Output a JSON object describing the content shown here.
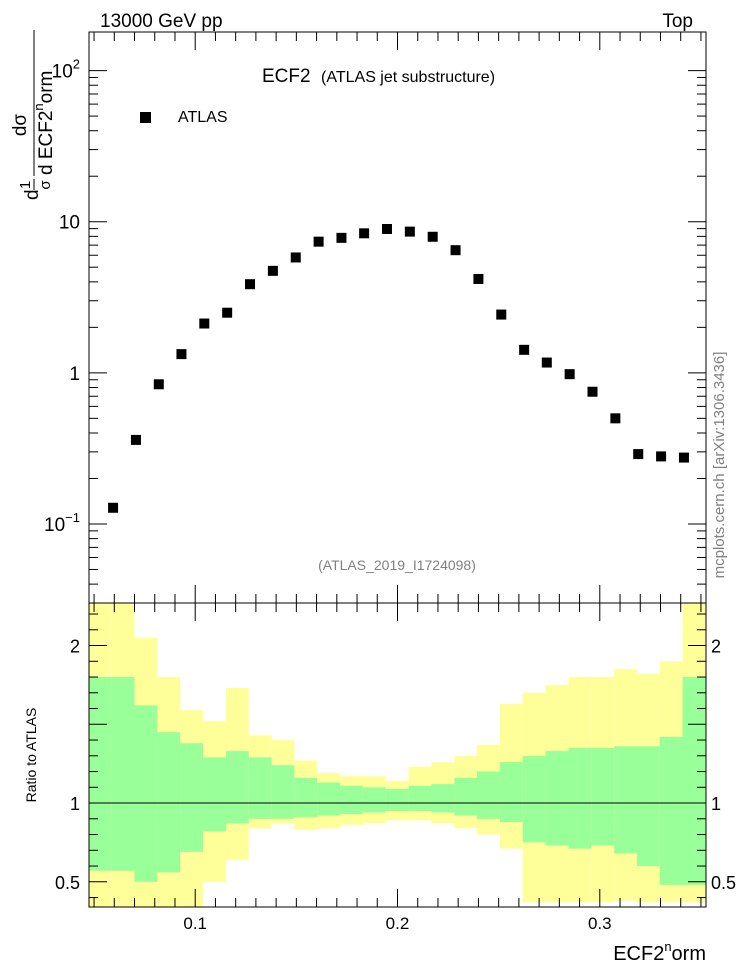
{
  "header": {
    "left": "13000 GeV pp",
    "right": "Top"
  },
  "side_text": "mcplots.cern.ch [arXiv:1306.3436]",
  "chart_data": [
    {
      "id": "main",
      "type": "scatter",
      "title": "ECF2",
      "subtitle": "(ATLAS jet substructure)",
      "analysis_tag": "(ATLAS_2019_I1724098)",
      "ylabel_parts": [
        "d",
        "1",
        "σ",
        "dσ",
        "d ECF2",
        "n",
        "orm"
      ],
      "yscale": "log",
      "ylim": [
        0.03,
        180
      ],
      "xlim": [
        0.0475,
        0.3525
      ],
      "yticks": [
        {
          "v": 0.1,
          "base": "10",
          "exp": "−1"
        },
        {
          "v": 1,
          "base": "1",
          "exp": ""
        },
        {
          "v": 10,
          "base": "10",
          "exp": ""
        },
        {
          "v": 100,
          "base": "10",
          "exp": "2"
        }
      ],
      "legend": {
        "label": "ATLAS",
        "placement": "top-left"
      },
      "series": [
        {
          "name": "ATLAS",
          "x": [
            0.0594,
            0.0707,
            0.082,
            0.0932,
            0.1045,
            0.1158,
            0.1271,
            0.1384,
            0.1497,
            0.161,
            0.1723,
            0.1835,
            0.1948,
            0.2061,
            0.2174,
            0.2287,
            0.24,
            0.2513,
            0.2626,
            0.2738,
            0.2851,
            0.2964,
            0.3077,
            0.319,
            0.3303,
            0.3416
          ],
          "values": [
            0.128,
            0.36,
            0.84,
            1.33,
            2.12,
            2.5,
            3.86,
            4.73,
            5.8,
            7.38,
            7.82,
            8.38,
            8.95,
            8.6,
            7.95,
            6.48,
            4.18,
            2.43,
            1.42,
            1.17,
            0.98,
            0.75,
            0.5,
            0.29,
            0.28,
            0.275
          ]
        }
      ]
    },
    {
      "id": "ratio",
      "type": "area",
      "ylabel": "Ratio to ATLAS",
      "xlabel_parts": [
        "ECF2",
        "n",
        "orm"
      ],
      "xlim": [
        0.0475,
        0.3525
      ],
      "ylim": [
        0.34,
        2.27
      ],
      "xticks": [
        {
          "v": 0.1,
          "label": "0.1"
        },
        {
          "v": 0.2,
          "label": "0.2"
        },
        {
          "v": 0.3,
          "label": "0.3"
        }
      ],
      "yticks": [
        {
          "v": 0.5,
          "label": "0.5"
        },
        {
          "v": 1,
          "label": "1"
        },
        {
          "v": 2,
          "label": "2"
        }
      ],
      "reference_line": 1,
      "bin_edges": [
        0.0475,
        0.0588,
        0.07,
        0.0813,
        0.0926,
        0.1039,
        0.1152,
        0.1265,
        0.1378,
        0.149,
        0.1603,
        0.1716,
        0.1829,
        0.1942,
        0.2055,
        0.2168,
        0.2281,
        0.2393,
        0.2506,
        0.2619,
        0.2732,
        0.2845,
        0.2958,
        0.3071,
        0.3184,
        0.3296,
        0.3409
      ],
      "bands": [
        {
          "name": "total uncertainty",
          "color": "#ffff99",
          "upper": [
            2.37,
            2.37,
            2.05,
            1.8,
            1.59,
            1.52,
            1.73,
            1.43,
            1.4,
            1.27,
            1.19,
            1.17,
            1.17,
            1.14,
            1.23,
            1.26,
            1.3,
            1.37,
            1.63,
            1.7,
            1.75,
            1.8,
            1.8,
            1.85,
            1.82,
            1.9,
            2.37
          ],
          "lower": [
            0.0,
            0.0,
            0.0,
            0.0,
            0.0,
            0.5,
            0.64,
            0.84,
            0.87,
            0.83,
            0.84,
            0.86,
            0.87,
            0.89,
            0.89,
            0.87,
            0.84,
            0.8,
            0.71,
            0.37,
            0.37,
            0.37,
            0.37,
            0.38,
            0.37,
            0.37,
            0.37
          ]
        },
        {
          "name": "statistical uncertainty",
          "color": "#99ff99",
          "upper": [
            1.8,
            1.8,
            1.62,
            1.45,
            1.38,
            1.29,
            1.33,
            1.29,
            1.24,
            1.16,
            1.13,
            1.11,
            1.1,
            1.09,
            1.11,
            1.12,
            1.16,
            1.2,
            1.26,
            1.3,
            1.33,
            1.35,
            1.35,
            1.36,
            1.36,
            1.42,
            1.8
          ],
          "lower": [
            0.57,
            0.57,
            0.5,
            0.56,
            0.69,
            0.82,
            0.87,
            0.9,
            0.9,
            0.91,
            0.92,
            0.93,
            0.94,
            0.95,
            0.95,
            0.94,
            0.92,
            0.9,
            0.88,
            0.75,
            0.73,
            0.71,
            0.73,
            0.68,
            0.6,
            0.48,
            0.52
          ]
        }
      ]
    }
  ]
}
